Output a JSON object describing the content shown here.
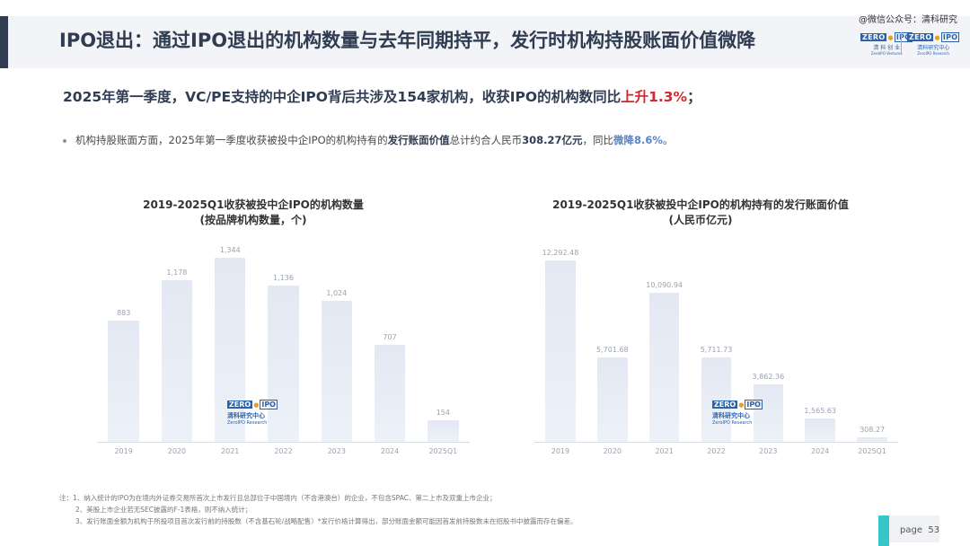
{
  "header": {
    "title": "IPO退出：通过IPO退出的机构数量与去年同期持平，发行时机构持股账面价值微降",
    "watermark": "@微信公众号：清科研究",
    "logos": [
      {
        "brand_left": "ZERO",
        "brand_right": "IPO",
        "sub1": "清 科 创 业",
        "sub2": "ZeroIPO Ventures"
      },
      {
        "brand_left": "ZERO",
        "brand_right": "IPO",
        "sub1": "清科研究中心",
        "sub2": "ZeroIPO Research"
      }
    ]
  },
  "headline": {
    "text": "2025年第一季度，VC/PE支持的中企IPO背后共涉及154家机构，收获IPO的机构数同比",
    "highlight": "上升1.3%",
    "suffix": "；"
  },
  "bullet": {
    "part1": "机构持股账面方面，2025年第一季度收获被投中企IPO的机构持有的",
    "bold1": "发行账面价值",
    "part2": "总计约合人民币",
    "bold2": "308.27亿元",
    "part3": "，同比",
    "down": "微降8.6%",
    "part4": "。"
  },
  "chart_logo": {
    "brand_left": "ZERO",
    "brand_right": "IPO",
    "sub1": "清科研究中心",
    "sub2": "ZeroIPO Research"
  },
  "chart_data": [
    {
      "type": "bar",
      "title": "2019-2025Q1收获被投中企IPO的机构数量",
      "subtitle": "(按品牌机构数量，个)",
      "categories": [
        "2019",
        "2020",
        "2021",
        "2022",
        "2023",
        "2024",
        "2025Q1"
      ],
      "values": [
        883,
        1178,
        1344,
        1136,
        1024,
        707,
        154
      ],
      "labels": [
        "883",
        "1,178",
        "1,344",
        "1,136",
        "1,024",
        "707",
        "154"
      ],
      "ylim": [
        0,
        1400
      ]
    },
    {
      "type": "bar",
      "title": "2019-2025Q1收获被投中企IPO的机构持有的发行账面价值",
      "subtitle": "(人民币亿元)",
      "categories": [
        "2019",
        "2020",
        "2021",
        "2022",
        "2023",
        "2024",
        "2025Q1"
      ],
      "values": [
        12292.48,
        5701.68,
        10090.94,
        5711.73,
        3862.36,
        1565.63,
        308.27
      ],
      "labels": [
        "12,292.48",
        "5,701.68",
        "10,090.94",
        "5,711.73",
        "3,862.36",
        "1,565.63",
        "308.27"
      ],
      "ylim": [
        0,
        13000
      ]
    }
  ],
  "notes": [
    {
      "prefix": "注：1、",
      "text": "纳入统计的IPO为在境内外证券交易所首次上市发行且总部位于中国境内（不含港澳台）的企业，不包含SPAC、第二上市及双重上市企业；"
    },
    {
      "prefix": "2、",
      "text": "美股上市企业若无SEC披露的F-1表格，则不纳入统计；"
    },
    {
      "prefix": "3、",
      "text": "发行账面金额为机构于所投项目首次发行前的持股数（不含基石轮/战略配售）*发行价格计算得出，部分账面金额可能因首发前持股数未在招股书中披露而存在偏差。"
    }
  ],
  "footer": {
    "page_label": "page",
    "page_number": "53"
  }
}
